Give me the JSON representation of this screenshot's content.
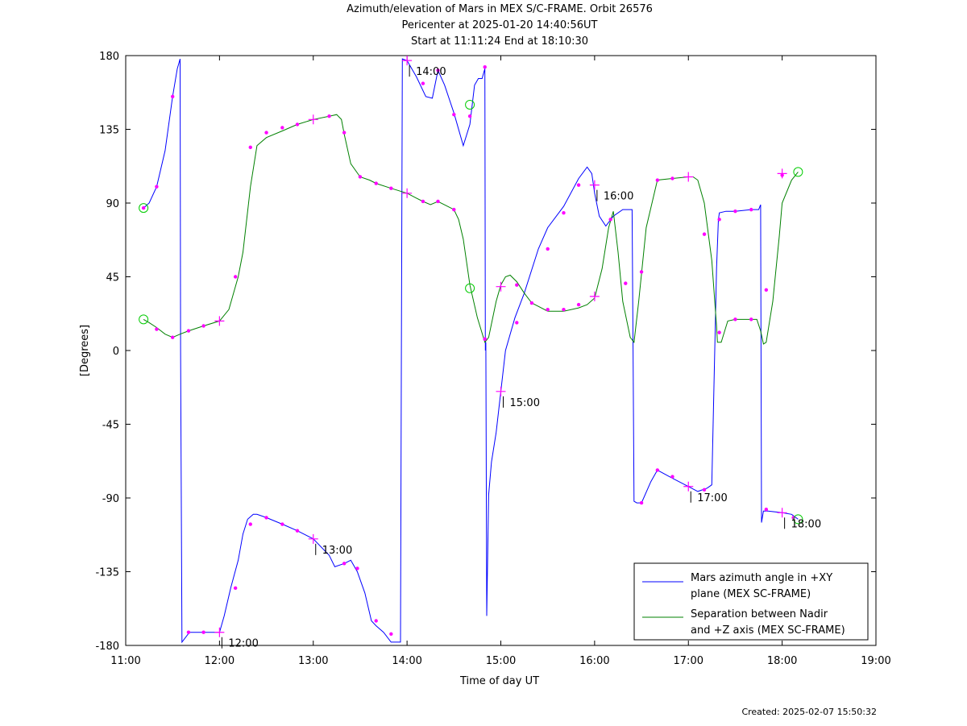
{
  "title_lines": [
    "Azimuth/elevation of Mars in MEX S/C-FRAME.  Orbit 26576",
    "Pericenter at 2025-01-20 14:40:56UT",
    "Start at 11:11:24 End at 18:10:30"
  ],
  "created": "Created: 2025-02-07 15:50:32",
  "chart_data": {
    "type": "line",
    "xlabel": "Time of day UT",
    "ylabel": "[Degrees]",
    "xlim": [
      11.0,
      19.0
    ],
    "ylim": [
      -180,
      180
    ],
    "x_ticks": [
      {
        "v": 11,
        "label": "11:00"
      },
      {
        "v": 12,
        "label": "12:00"
      },
      {
        "v": 13,
        "label": "13:00"
      },
      {
        "v": 14,
        "label": "14:00"
      },
      {
        "v": 15,
        "label": "15:00"
      },
      {
        "v": 16,
        "label": "16:00"
      },
      {
        "v": 17,
        "label": "17:00"
      },
      {
        "v": 18,
        "label": "18:00"
      },
      {
        "v": 19,
        "label": "19:00"
      }
    ],
    "y_ticks": [
      {
        "v": 180,
        "label": "180"
      },
      {
        "v": 135,
        "label": "135"
      },
      {
        "v": 90,
        "label": "90"
      },
      {
        "v": 45,
        "label": "45"
      },
      {
        "v": 0,
        "label": "0"
      },
      {
        "v": -45,
        "label": "-45"
      },
      {
        "v": -90,
        "label": "-90"
      },
      {
        "v": -135,
        "label": "-135"
      },
      {
        "v": -180,
        "label": "-180"
      }
    ],
    "legend_position": "bottom-right",
    "series": [
      {
        "name": "Mars azimuth angle in +XY plane (MEX SC-FRAME)",
        "legend_lines": [
          "Mars azimuth angle in +XY",
          "plane (MEX SC-FRAME)"
        ],
        "color": "#0000ff",
        "x": [
          11.19,
          11.25,
          11.33,
          11.42,
          11.5,
          11.55,
          11.58,
          11.585,
          11.6,
          11.68,
          11.85,
          12.0,
          12.05,
          12.12,
          12.2,
          12.25,
          12.3,
          12.36,
          12.4,
          12.5,
          12.67,
          12.83,
          13.0,
          13.17,
          13.23,
          13.33,
          13.4,
          13.47,
          13.55,
          13.62,
          13.67,
          13.75,
          13.83,
          13.93,
          13.94,
          13.95,
          14.0,
          14.1,
          14.2,
          14.27,
          14.33,
          14.4,
          14.5,
          14.6,
          14.67,
          14.72,
          14.76,
          14.8,
          14.83,
          14.835,
          14.84,
          14.85,
          14.87,
          14.9,
          14.95,
          15.0,
          15.05,
          15.15,
          15.25,
          15.4,
          15.5,
          15.67,
          15.83,
          15.92,
          15.97,
          16.0,
          16.05,
          16.12,
          16.2,
          16.3,
          16.4,
          16.41,
          16.42,
          16.45,
          16.5,
          16.6,
          16.67,
          16.83,
          17.0,
          17.1,
          17.2,
          17.25,
          17.3,
          17.32,
          17.33,
          17.4,
          17.5,
          17.67,
          17.75,
          17.77,
          17.78,
          17.8,
          17.85,
          18.0,
          18.1,
          18.17
        ],
        "y": [
          87,
          90,
          100,
          122,
          155,
          172,
          178,
          0,
          -178,
          -172,
          -172,
          -172,
          -162,
          -145,
          -128,
          -112,
          -103,
          -100,
          -100,
          -102,
          -106,
          -110,
          -115,
          -125,
          -132,
          -130,
          -128,
          -135,
          -148,
          -165,
          -168,
          -172,
          -178,
          -178,
          0,
          178,
          177,
          167,
          155,
          154,
          171,
          162,
          145,
          125,
          138,
          162,
          166,
          166,
          172,
          0,
          5,
          -162,
          -88,
          -68,
          -50,
          -25,
          0,
          20,
          35,
          62,
          75,
          88,
          105,
          112,
          108,
          96,
          82,
          76,
          82,
          86,
          86,
          0,
          -92,
          -93,
          -93,
          -80,
          -73,
          -78,
          -83,
          -86,
          -84,
          -82,
          50,
          80,
          84,
          85,
          85,
          86,
          86,
          89,
          -105,
          -98,
          -98,
          -99,
          -100,
          -103
        ]
      },
      {
        "name": "Separation between Nadir and +Z axis (MEX SC-FRAME)",
        "legend_lines": [
          "Separation between Nadir",
          "and +Z axis (MEX SC-FRAME)"
        ],
        "color": "#008000",
        "x": [
          11.19,
          11.25,
          11.33,
          11.42,
          11.5,
          11.58,
          11.67,
          11.83,
          12.0,
          12.1,
          12.2,
          12.25,
          12.33,
          12.4,
          12.5,
          12.67,
          12.83,
          13.0,
          13.17,
          13.25,
          13.3,
          13.33,
          13.4,
          13.5,
          13.6,
          13.67,
          13.83,
          14.0,
          14.1,
          14.17,
          14.25,
          14.33,
          14.5,
          14.55,
          14.6,
          14.67,
          14.75,
          14.83,
          14.87,
          14.95,
          15.0,
          15.05,
          15.1,
          15.17,
          15.25,
          15.33,
          15.5,
          15.67,
          15.83,
          15.92,
          16.0,
          16.08,
          16.15,
          16.2,
          16.25,
          16.3,
          16.38,
          16.42,
          16.47,
          16.55,
          16.67,
          16.83,
          17.0,
          17.05,
          17.1,
          17.17,
          17.25,
          17.3,
          17.31,
          17.35,
          17.42,
          17.5,
          17.67,
          17.73,
          17.77,
          17.8,
          17.83,
          17.9,
          17.97,
          18.0,
          18.1,
          18.17
        ],
        "y": [
          19,
          17,
          14,
          10,
          8,
          10,
          12,
          15,
          18,
          25,
          45,
          60,
          100,
          125,
          130,
          134,
          138,
          141,
          143,
          144,
          141,
          132,
          114,
          106,
          104,
          102,
          99,
          96,
          93,
          91,
          89,
          91,
          86,
          80,
          68,
          40,
          20,
          5,
          8,
          30,
          40,
          45,
          46,
          42,
          35,
          29,
          24,
          24,
          26,
          28,
          32,
          50,
          75,
          85,
          60,
          30,
          8,
          5,
          30,
          75,
          104,
          105,
          106,
          106,
          104,
          90,
          55,
          15,
          5,
          5,
          18,
          19,
          19,
          19,
          12,
          4,
          5,
          30,
          70,
          90,
          104,
          109
        ]
      }
    ],
    "marker_dots": [
      {
        "x": 11.19,
        "y": 87
      },
      {
        "x": 11.33,
        "y": 100
      },
      {
        "x": 11.5,
        "y": 155
      },
      {
        "x": 11.67,
        "y": -172
      },
      {
        "x": 11.83,
        "y": -172
      },
      {
        "x": 12.17,
        "y": -145
      },
      {
        "x": 12.33,
        "y": -106
      },
      {
        "x": 12.5,
        "y": -102
      },
      {
        "x": 12.67,
        "y": -106
      },
      {
        "x": 12.83,
        "y": -110
      },
      {
        "x": 13.33,
        "y": -130
      },
      {
        "x": 13.47,
        "y": -133
      },
      {
        "x": 13.67,
        "y": -165
      },
      {
        "x": 13.83,
        "y": -173
      },
      {
        "x": 14.17,
        "y": 163
      },
      {
        "x": 14.33,
        "y": 171
      },
      {
        "x": 14.5,
        "y": 144
      },
      {
        "x": 14.67,
        "y": 143
      },
      {
        "x": 14.83,
        "y": 173
      },
      {
        "x": 14.83,
        "y": 7
      },
      {
        "x": 15.17,
        "y": 17
      },
      {
        "x": 15.5,
        "y": 62
      },
      {
        "x": 15.67,
        "y": 84
      },
      {
        "x": 15.83,
        "y": 101
      },
      {
        "x": 16.17,
        "y": 80
      },
      {
        "x": 16.5,
        "y": -93
      },
      {
        "x": 16.67,
        "y": -73
      },
      {
        "x": 16.83,
        "y": -77
      },
      {
        "x": 17.17,
        "y": -85
      },
      {
        "x": 17.33,
        "y": 80
      },
      {
        "x": 17.5,
        "y": 85
      },
      {
        "x": 17.67,
        "y": 86
      },
      {
        "x": 17.83,
        "y": -97
      },
      {
        "x": 18.12,
        "y": -102
      },
      {
        "x": 11.33,
        "y": 13
      },
      {
        "x": 11.5,
        "y": 8
      },
      {
        "x": 11.67,
        "y": 12
      },
      {
        "x": 11.83,
        "y": 15
      },
      {
        "x": 12.17,
        "y": 45
      },
      {
        "x": 12.33,
        "y": 124
      },
      {
        "x": 12.5,
        "y": 133
      },
      {
        "x": 12.67,
        "y": 136
      },
      {
        "x": 12.83,
        "y": 138
      },
      {
        "x": 13.17,
        "y": 143
      },
      {
        "x": 13.33,
        "y": 133
      },
      {
        "x": 13.5,
        "y": 106
      },
      {
        "x": 13.67,
        "y": 102
      },
      {
        "x": 13.83,
        "y": 99
      },
      {
        "x": 14.17,
        "y": 91
      },
      {
        "x": 14.33,
        "y": 91
      },
      {
        "x": 14.5,
        "y": 86
      },
      {
        "x": 14.83,
        "y": 7
      },
      {
        "x": 15.17,
        "y": 40
      },
      {
        "x": 15.33,
        "y": 29
      },
      {
        "x": 15.5,
        "y": 25
      },
      {
        "x": 15.67,
        "y": 25
      },
      {
        "x": 15.83,
        "y": 28
      },
      {
        "x": 16.33,
        "y": 41
      },
      {
        "x": 16.5,
        "y": 48
      },
      {
        "x": 16.67,
        "y": 104
      },
      {
        "x": 16.83,
        "y": 105
      },
      {
        "x": 17.17,
        "y": 71
      },
      {
        "x": 17.33,
        "y": 11
      },
      {
        "x": 17.5,
        "y": 19
      },
      {
        "x": 17.67,
        "y": 19
      },
      {
        "x": 17.83,
        "y": 37
      },
      {
        "x": 18.0,
        "y": 107
      }
    ],
    "hour_marks": [
      {
        "x": 12.0,
        "y": -172,
        "label": "12:00"
      },
      {
        "x": 13.0,
        "y": -115,
        "label": "13:00"
      },
      {
        "x": 14.0,
        "y": 177,
        "label": "14:00"
      },
      {
        "x": 15.0,
        "y": -25,
        "label": "15:00"
      },
      {
        "x": 16.0,
        "y": 101,
        "label": "16:00"
      },
      {
        "x": 17.0,
        "y": -83,
        "label": "17:00"
      },
      {
        "x": 18.0,
        "y": -99,
        "label": "18:00"
      }
    ],
    "plus_marks": [
      {
        "x": 12.0,
        "y": 18
      },
      {
        "x": 13.0,
        "y": 141
      },
      {
        "x": 14.0,
        "y": 96
      },
      {
        "x": 15.0,
        "y": 39
      },
      {
        "x": 16.0,
        "y": 33
      },
      {
        "x": 17.0,
        "y": 106
      },
      {
        "x": 18.0,
        "y": 108
      }
    ],
    "circle_marks": [
      {
        "x": 11.19,
        "y": 87
      },
      {
        "x": 11.19,
        "y": 19
      },
      {
        "x": 14.67,
        "y": 150
      },
      {
        "x": 14.67,
        "y": 38
      },
      {
        "x": 18.17,
        "y": 109
      },
      {
        "x": 18.17,
        "y": -103
      }
    ]
  }
}
